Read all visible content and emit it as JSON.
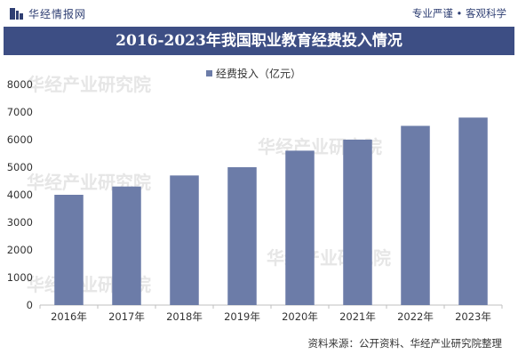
{
  "header": {
    "brand": "华经情报网",
    "tagline": "专业严谨 • 客观科学"
  },
  "source_note": "资料来源：公开资料、华经产业研究院整理",
  "watermark": "华经产业研究院",
  "colors": {
    "bar": "#6c7ca8",
    "title_bg": "#3d4e84",
    "brand": "#2f3f73"
  },
  "chart_data": {
    "type": "bar",
    "title": "2016-2023年我国职业教育经费投入情况",
    "categories": [
      "2016年",
      "2017年",
      "2018年",
      "2019年",
      "2020年",
      "2021年",
      "2022年",
      "2023年"
    ],
    "series": [
      {
        "name": "经费投入（亿元）",
        "values": [
          4000,
          4300,
          4700,
          5000,
          5600,
          6000,
          6500,
          6800
        ]
      }
    ],
    "ylim": [
      0,
      8000
    ],
    "yticks": [
      0,
      1000,
      2000,
      3000,
      4000,
      5000,
      6000,
      7000,
      8000
    ],
    "grid": false,
    "legend_position": "top-center"
  }
}
